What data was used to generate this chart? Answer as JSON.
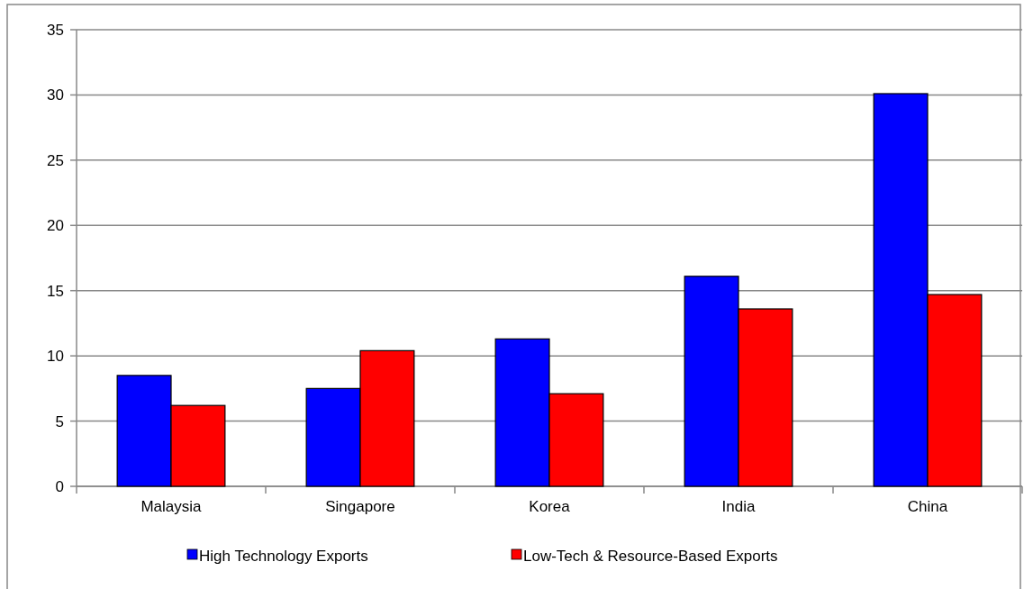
{
  "chart_data": {
    "type": "bar",
    "categories": [
      "Malaysia",
      "Singapore",
      "Korea",
      "India",
      "China"
    ],
    "series": [
      {
        "name": "High Technology Exports",
        "color": "#0000ff",
        "values": [
          8.5,
          7.5,
          11.3,
          16.1,
          30.1
        ]
      },
      {
        "name": "Low-Tech & Resource-Based Exports",
        "color": "#ff0000",
        "values": [
          6.2,
          10.4,
          7.1,
          13.6,
          14.7
        ]
      }
    ],
    "ylim": [
      0,
      35
    ],
    "yticks": [
      0,
      5,
      10,
      15,
      20,
      25,
      30,
      35
    ],
    "grid": "y",
    "legend": "bottom"
  }
}
